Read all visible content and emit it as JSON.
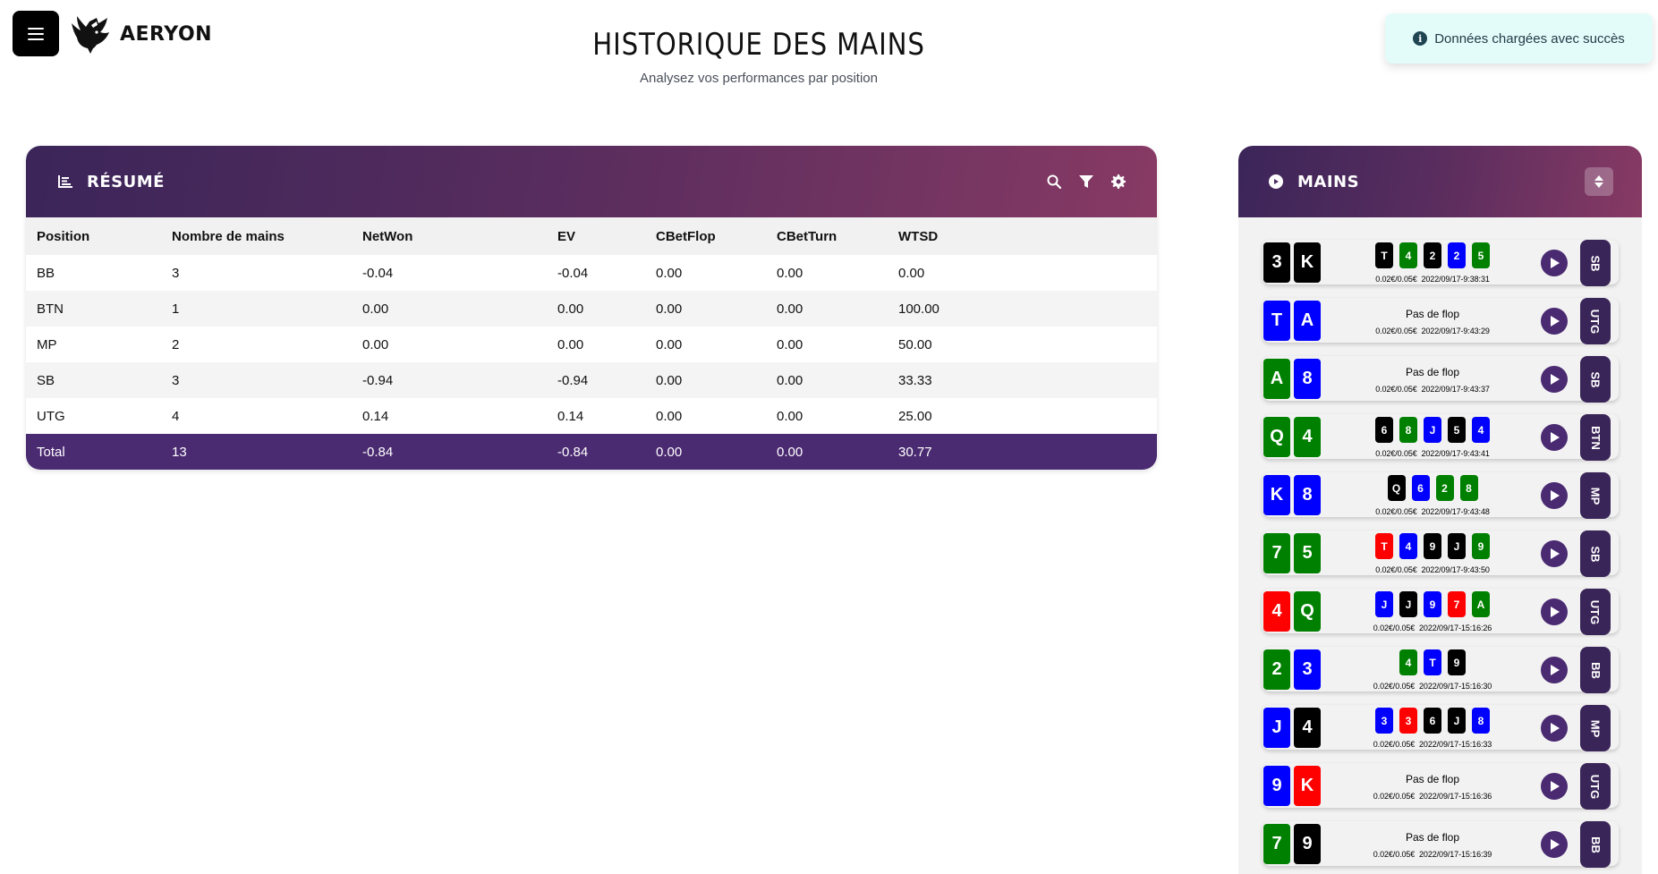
{
  "header": {
    "brand": "AERYON",
    "title": "HISTORIQUE DES MAINS",
    "subtitle": "Analysez vos performances par position"
  },
  "toast": {
    "icon": "info-icon",
    "message": "Données chargées avec succès"
  },
  "colors": {
    "accent": "#4a2a71",
    "header_gradient_start": "#3b2559",
    "header_gradient_end": "#873a64",
    "card_black": "#000000",
    "card_green": "#008000",
    "card_blue": "#0000ff",
    "card_red": "#ff0000"
  },
  "resume": {
    "title": "RÉSUMÉ",
    "icons": [
      "chart-icon",
      "search-icon",
      "filter-icon",
      "gear-icon"
    ],
    "columns": [
      "Position",
      "Nombre de mains",
      "NetWon",
      "EV",
      "CBetFlop",
      "CBetTurn",
      "WTSD"
    ],
    "rows": [
      [
        "BB",
        "3",
        "-0.04",
        "-0.04",
        "0.00",
        "0.00",
        "0.00"
      ],
      [
        "BTN",
        "1",
        "0.00",
        "0.00",
        "0.00",
        "0.00",
        "100.00"
      ],
      [
        "MP",
        "2",
        "0.00",
        "0.00",
        "0.00",
        "0.00",
        "50.00"
      ],
      [
        "SB",
        "3",
        "-0.94",
        "-0.94",
        "0.00",
        "0.00",
        "33.33"
      ],
      [
        "UTG",
        "4",
        "0.14",
        "0.14",
        "0.00",
        "0.00",
        "25.00"
      ]
    ],
    "total": [
      "Total",
      "13",
      "-0.84",
      "-0.84",
      "0.00",
      "0.00",
      "30.77"
    ]
  },
  "mains": {
    "title": "MAINS",
    "no_flop_label": "Pas de flop",
    "hands": [
      {
        "hole": [
          [
            "3",
            "black"
          ],
          [
            "K",
            "black"
          ]
        ],
        "board": [
          [
            "T",
            "black"
          ],
          [
            "4",
            "green"
          ],
          [
            "2",
            "black"
          ],
          [
            "2",
            "blue"
          ],
          [
            "5",
            "green"
          ]
        ],
        "stakes": "0.02€/0.05€",
        "time": "2022/09/17-9:38:31",
        "position": "SB"
      },
      {
        "hole": [
          [
            "T",
            "blue"
          ],
          [
            "A",
            "blue"
          ]
        ],
        "board": [],
        "stakes": "0.02€/0.05€",
        "time": "2022/09/17-9:43:29",
        "position": "UTG"
      },
      {
        "hole": [
          [
            "A",
            "green"
          ],
          [
            "8",
            "blue"
          ]
        ],
        "board": [],
        "stakes": "0.02€/0.05€",
        "time": "2022/09/17-9:43:37",
        "position": "SB"
      },
      {
        "hole": [
          [
            "Q",
            "green"
          ],
          [
            "4",
            "green"
          ]
        ],
        "board": [
          [
            "6",
            "black"
          ],
          [
            "8",
            "green"
          ],
          [
            "J",
            "blue"
          ],
          [
            "5",
            "black"
          ],
          [
            "4",
            "blue"
          ]
        ],
        "stakes": "0.02€/0.05€",
        "time": "2022/09/17-9:43:41",
        "position": "BTN"
      },
      {
        "hole": [
          [
            "K",
            "blue"
          ],
          [
            "8",
            "blue"
          ]
        ],
        "board": [
          [
            "Q",
            "black"
          ],
          [
            "6",
            "blue"
          ],
          [
            "2",
            "green"
          ],
          [
            "8",
            "green"
          ]
        ],
        "stakes": "0.02€/0.05€",
        "time": "2022/09/17-9:43:48",
        "position": "MP"
      },
      {
        "hole": [
          [
            "7",
            "green"
          ],
          [
            "5",
            "green"
          ]
        ],
        "board": [
          [
            "T",
            "red"
          ],
          [
            "4",
            "blue"
          ],
          [
            "9",
            "black"
          ],
          [
            "J",
            "black"
          ],
          [
            "9",
            "green"
          ]
        ],
        "stakes": "0.02€/0.05€",
        "time": "2022/09/17-9:43:50",
        "position": "SB"
      },
      {
        "hole": [
          [
            "4",
            "red"
          ],
          [
            "Q",
            "green"
          ]
        ],
        "board": [
          [
            "J",
            "blue"
          ],
          [
            "J",
            "black"
          ],
          [
            "9",
            "blue"
          ],
          [
            "7",
            "red"
          ],
          [
            "A",
            "green"
          ]
        ],
        "stakes": "0.02€/0.05€",
        "time": "2022/09/17-15:16:26",
        "position": "UTG"
      },
      {
        "hole": [
          [
            "2",
            "green"
          ],
          [
            "3",
            "blue"
          ]
        ],
        "board": [
          [
            "4",
            "green"
          ],
          [
            "T",
            "blue"
          ],
          [
            "9",
            "black"
          ]
        ],
        "stakes": "0.02€/0.05€",
        "time": "2022/09/17-15:16:30",
        "position": "BB"
      },
      {
        "hole": [
          [
            "J",
            "blue"
          ],
          [
            "4",
            "black"
          ]
        ],
        "board": [
          [
            "3",
            "blue"
          ],
          [
            "3",
            "red"
          ],
          [
            "6",
            "black"
          ],
          [
            "J",
            "black"
          ],
          [
            "8",
            "blue"
          ]
        ],
        "stakes": "0.02€/0.05€",
        "time": "2022/09/17-15:16:33",
        "position": "MP"
      },
      {
        "hole": [
          [
            "9",
            "blue"
          ],
          [
            "K",
            "red"
          ]
        ],
        "board": [],
        "stakes": "0.02€/0.05€",
        "time": "2022/09/17-15:16:36",
        "position": "UTG"
      },
      {
        "hole": [
          [
            "7",
            "green"
          ],
          [
            "9",
            "black"
          ]
        ],
        "board": [],
        "stakes": "0.02€/0.05€",
        "time": "2022/09/17-15:16:39",
        "position": "BB"
      }
    ]
  }
}
